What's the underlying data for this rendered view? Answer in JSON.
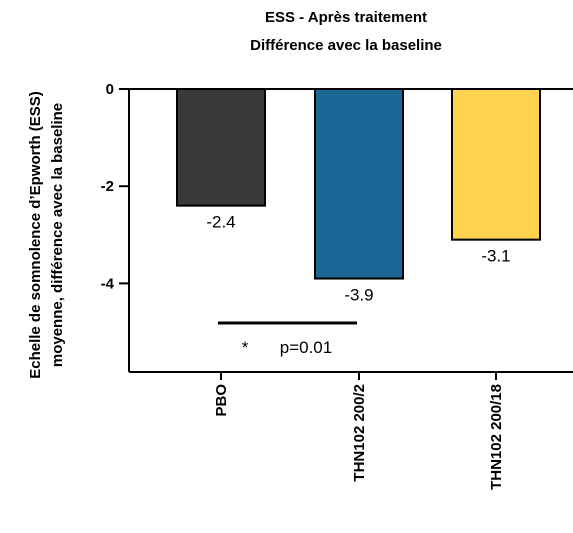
{
  "chart_data": {
    "type": "bar",
    "title_lines": [
      "ESS - Après traitement",
      "Différence avec la baseline"
    ],
    "ylabel_lines": [
      "Echelle de somnolence d’Epworth (ESS)",
      "moyenne, différence avec la baseline"
    ],
    "categories": [
      "PBO",
      "THN102 200/2",
      "THN102 200/18"
    ],
    "values": [
      -2.4,
      -3.9,
      -3.1
    ],
    "value_labels": [
      "-2.4",
      "-3.9",
      "-3.1"
    ],
    "colors": [
      "#3a3a3a",
      "#1d6796",
      "#ffd24e"
    ],
    "ylim": [
      -5.8,
      0
    ],
    "yticks": [
      0,
      -2,
      -4
    ],
    "ytick_labels": [
      "0",
      "-2",
      "-4"
    ],
    "annotation": {
      "star": "*",
      "text": "p=0.01"
    }
  }
}
